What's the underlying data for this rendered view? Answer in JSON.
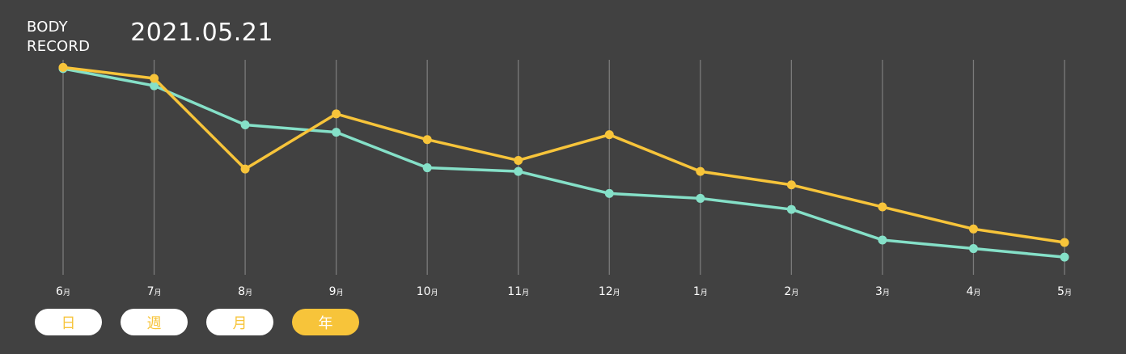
{
  "header": {
    "title_line1": "BODY",
    "title_line2": "RECORD",
    "date": "2021.05.21"
  },
  "period_buttons": [
    {
      "label": "日",
      "active": false
    },
    {
      "label": "週",
      "active": false
    },
    {
      "label": "月",
      "active": false
    },
    {
      "label": "年",
      "active": true
    }
  ],
  "colors": {
    "background": "#414141",
    "gridline": "#7a7a7a",
    "series_yellow": "#f7c43a",
    "series_teal": "#85e0c8",
    "button_bg": "#ffffff",
    "button_text": "#f7c43a"
  },
  "chart_data": {
    "type": "line",
    "x": [
      "6",
      "7",
      "8",
      "9",
      "10",
      "11",
      "12",
      "1",
      "2",
      "3",
      "4",
      "5"
    ],
    "x_unit": "月",
    "series": [
      {
        "color": "#f7c43a",
        "values": [
          89,
          84.5,
          47.5,
          70,
          59.5,
          51,
          61.5,
          46.5,
          41,
          32,
          23,
          17.5
        ]
      },
      {
        "color": "#85e0c8",
        "values": [
          88.5,
          81.5,
          65.5,
          62.5,
          48,
          46.5,
          37.5,
          35.5,
          31,
          18.5,
          15,
          11.5
        ]
      }
    ],
    "ylim": [
      0,
      100
    ],
    "grid": "vertical",
    "xlabel": "",
    "ylabel": ""
  }
}
